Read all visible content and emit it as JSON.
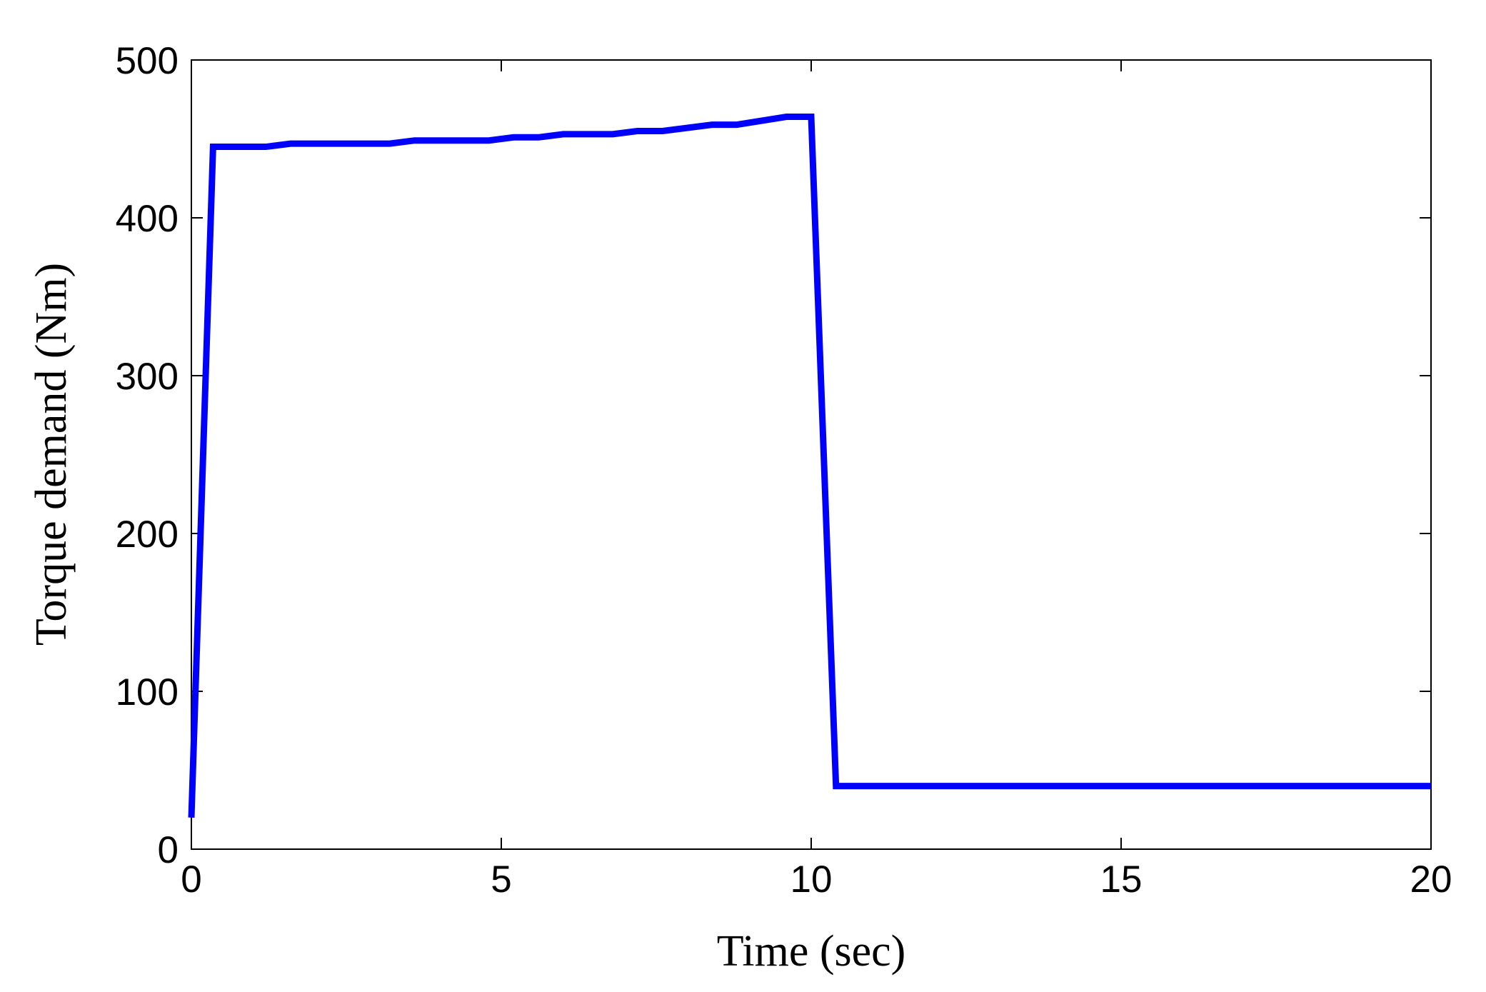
{
  "chart_data": {
    "type": "line",
    "xlabel": "Time (sec)",
    "ylabel": "Torque demand (Nm)",
    "x": [
      0,
      0.35,
      1.2,
      1.6,
      3.2,
      3.6,
      4.8,
      5.2,
      5.6,
      6,
      6.8,
      7.2,
      7.6,
      8.4,
      8.8,
      9.6,
      10,
      10.4,
      20
    ],
    "series": [
      {
        "color": "#0000ff",
        "values": [
          20,
          445,
          445,
          447,
          447,
          449,
          449,
          451,
          451,
          453,
          453,
          455,
          455,
          459,
          459,
          464,
          464,
          40,
          40
        ]
      }
    ],
    "xlim": [
      0,
      20
    ],
    "xticks": [
      0,
      5,
      10,
      15,
      20
    ],
    "ylim": [
      0,
      500
    ],
    "yticks": [
      0,
      100,
      200,
      300,
      400,
      500
    ],
    "grid": false
  }
}
